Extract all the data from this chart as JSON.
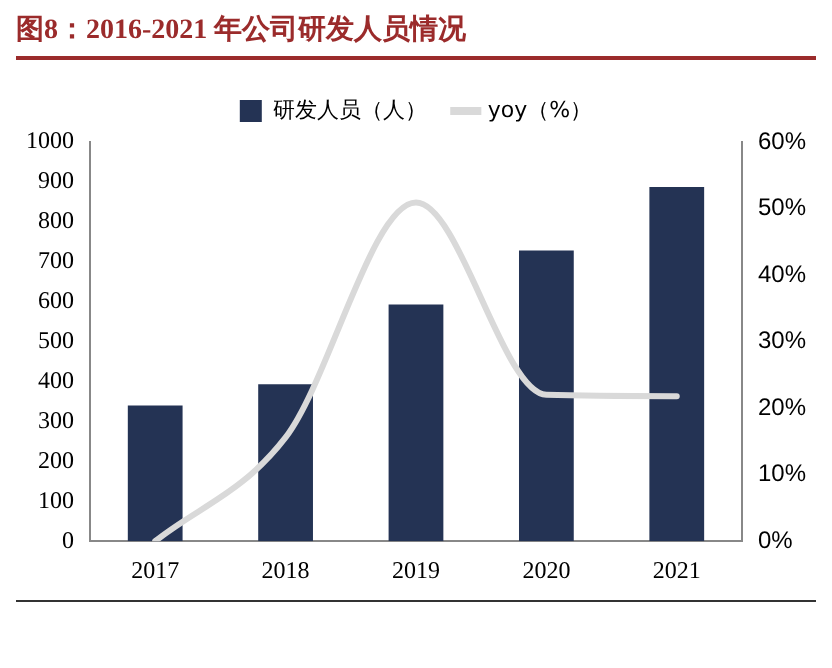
{
  "chart_data": {
    "type": "bar",
    "title": "图8：2016-2021 年公司研发人员情况",
    "categories": [
      "2017",
      "2018",
      "2019",
      "2020",
      "2021"
    ],
    "series": [
      {
        "name": "研发人员（人）",
        "color": "#243354",
        "values": [
          340,
          393,
          593,
          728,
          887
        ]
      },
      {
        "name": "yoy（%）",
        "type": "line",
        "axis": "y2",
        "color": "#d9d9d9",
        "values": [
          0,
          15.6,
          50.9,
          22,
          21.8
        ]
      }
    ],
    "ylim": [
      0,
      1000
    ],
    "yticks": [
      0,
      100,
      200,
      300,
      400,
      500,
      600,
      700,
      800,
      900,
      1000
    ],
    "y2lim": [
      0,
      60
    ],
    "y2ticks": [
      {
        "value": 0,
        "label": "0%"
      },
      {
        "value": 10,
        "label": "10%"
      },
      {
        "value": 20,
        "label": "20%"
      },
      {
        "value": 30,
        "label": "30%"
      },
      {
        "value": 40,
        "label": "40%"
      },
      {
        "value": 50,
        "label": "50%"
      },
      {
        "value": 60,
        "label": "60%"
      }
    ],
    "grid": false,
    "legend": "top",
    "marker": "none"
  }
}
